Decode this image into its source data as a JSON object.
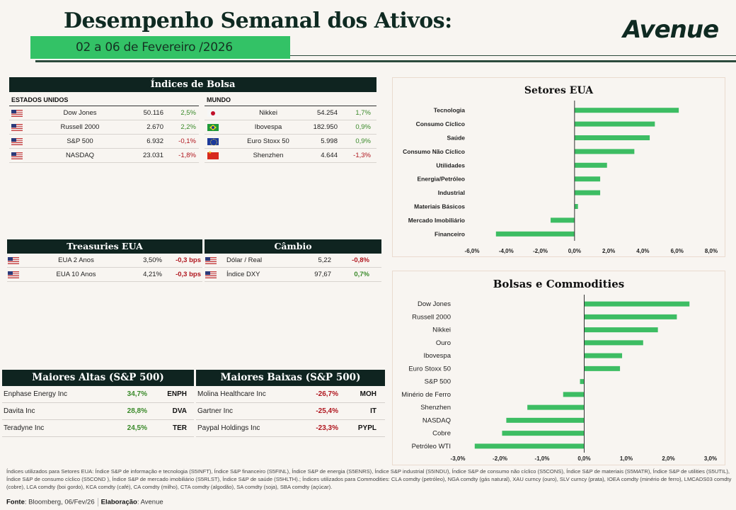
{
  "header": {
    "title": "Desempenho Semanal dos Ativos:",
    "date_range": "02 a 06 de Fevereiro /2026",
    "logo": "Avenue"
  },
  "indices": {
    "title": "Índices de Bolsa",
    "us_label": "ESTADOS UNIDOS",
    "world_label": "MUNDO",
    "us": [
      {
        "flag": "us",
        "name": "Dow Jones",
        "value": "50.116",
        "change": "2,5%",
        "dir": "pos"
      },
      {
        "flag": "us",
        "name": "Russell 2000",
        "value": "2.670",
        "change": "2,2%",
        "dir": "pos"
      },
      {
        "flag": "us",
        "name": "S&P 500",
        "value": "6.932",
        "change": "-0,1%",
        "dir": "neg"
      },
      {
        "flag": "us",
        "name": "NASDAQ",
        "value": "23.031",
        "change": "-1,8%",
        "dir": "neg"
      }
    ],
    "world": [
      {
        "flag": "jp",
        "name": "Nikkei",
        "value": "54.254",
        "change": "1,7%",
        "dir": "pos"
      },
      {
        "flag": "br",
        "name": "Ibovespa",
        "value": "182.950",
        "change": "0,9%",
        "dir": "pos"
      },
      {
        "flag": "eu",
        "name": "Euro Stoxx 50",
        "value": "5.998",
        "change": "0,9%",
        "dir": "pos"
      },
      {
        "flag": "cn",
        "name": "Shenzhen",
        "value": "4.644",
        "change": "-1,3%",
        "dir": "neg"
      }
    ]
  },
  "treasuries": {
    "title": "Treasuries EUA",
    "rows": [
      {
        "flag": "us",
        "name": "EUA 2 Anos",
        "value": "3,50%",
        "change": "-0,3 bps",
        "dir": "neg"
      },
      {
        "flag": "us",
        "name": "EUA 10 Anos",
        "value": "4,21%",
        "change": "-0,3 bps",
        "dir": "neg"
      }
    ]
  },
  "cambio": {
    "title": "Câmbio",
    "rows": [
      {
        "flag": "us",
        "name": "Dólar / Real",
        "value": "5,22",
        "change": "-0,8%",
        "dir": "neg"
      },
      {
        "flag": "us",
        "name": "Índice DXY",
        "value": "97,67",
        "change": "0,7%",
        "dir": "pos"
      }
    ]
  },
  "top_gainers": {
    "title": "Maiores Altas (S&P 500)",
    "rows": [
      {
        "name": "Enphase Energy Inc",
        "change": "34,7%",
        "ticker": "ENPH"
      },
      {
        "name": "Davita Inc",
        "change": "28,8%",
        "ticker": "DVA"
      },
      {
        "name": "Teradyne Inc",
        "change": "24,5%",
        "ticker": "TER"
      }
    ]
  },
  "top_losers": {
    "title": "Maiores Baixas (S&P 500)",
    "rows": [
      {
        "name": "Molina Healthcare Inc",
        "change": "-26,7%",
        "ticker": "MOH"
      },
      {
        "name": "Gartner Inc",
        "change": "-25,4%",
        "ticker": "IT"
      },
      {
        "name": "Paypal Holdings Inc",
        "change": "-23,3%",
        "ticker": "PYPL"
      }
    ]
  },
  "chart_data": [
    {
      "type": "bar",
      "orientation": "horizontal",
      "title": "Setores EUA",
      "categories": [
        "Tecnologia",
        "Consumo Cíclico",
        "Saúde",
        "Consumo Não Cíclico",
        "Utilidades",
        "Energia/Petróleo",
        "Industrial",
        "Materiais Básicos",
        "Mercado Imobiliário",
        "Financeiro"
      ],
      "values": [
        6.1,
        4.7,
        4.4,
        3.5,
        1.9,
        1.5,
        1.5,
        0.2,
        -1.4,
        -4.6
      ],
      "xlim": [
        -6,
        8
      ],
      "ticks": [
        -6,
        -4,
        -2,
        0,
        2,
        4,
        6,
        8
      ],
      "tick_labels": [
        "-6,0%",
        "-4,0%",
        "-2,0%",
        "0,0%",
        "2,0%",
        "4,0%",
        "6,0%",
        "8,0%"
      ],
      "unit": "%",
      "color": "#3dbd63",
      "grid": false
    },
    {
      "type": "bar",
      "orientation": "horizontal",
      "title": "Bolsas e Commodities",
      "categories": [
        "Dow Jones",
        "Russell 2000",
        "Nikkei",
        "Ouro",
        "Ibovespa",
        "Euro Stoxx 50",
        "S&P 500",
        "Minério de Ferro",
        "Shenzhen",
        "NASDAQ",
        "Cobre",
        "Petróleo WTI"
      ],
      "values": [
        2.5,
        2.2,
        1.75,
        1.4,
        0.9,
        0.85,
        -0.1,
        -0.5,
        -1.35,
        -1.85,
        -1.95,
        -2.6
      ],
      "xlim": [
        -3,
        3
      ],
      "ticks": [
        -3,
        -2,
        -1,
        0,
        1,
        2,
        3
      ],
      "tick_labels": [
        "-3,0%",
        "-2,0%",
        "-1,0%",
        "0,0%",
        "1,0%",
        "2,0%",
        "3,0%"
      ],
      "unit": "%",
      "color": "#3dbd63",
      "grid": false
    }
  ],
  "notes": "Índices utilizados para Setores EUA: Índice S&P de informação e tecnologia (S5INFT), Índice S&P financeiro (S5FINL), Índice S&P de energia (S5ENRS), Índice S&P industrial (S5INDU), Índice S&P de consumo não cíclico (S5CONS), Índice S&P de materiais (S5MATR), Índice S&P de utilities (S5UTIL), Índice S&P de consumo cíclico (S5COND ), Índice S&P de mercado imobiliário (S5RLST), Índice S&P de saúde (S5HLTH).; Índices utilizados para Commodities: CLA comdty (petróleo), NGA comdty (gás natural), XAU curncy (ouro), SLV curncy (prata), IOEA comdty (minério de ferro), LMCADS03 comdty (cobre), LCA comdty (boi gordo), KCA comdty (café), CA comdty (milho), CTA comdty (algodão), SA comdty (soja), SBA comdty (açúcar).",
  "footer": {
    "source_label": "Fonte",
    "source_value": ": Bloomberg, 06/Fev/26",
    "author_label": "Elaboração",
    "author_value": ": Avenue"
  }
}
